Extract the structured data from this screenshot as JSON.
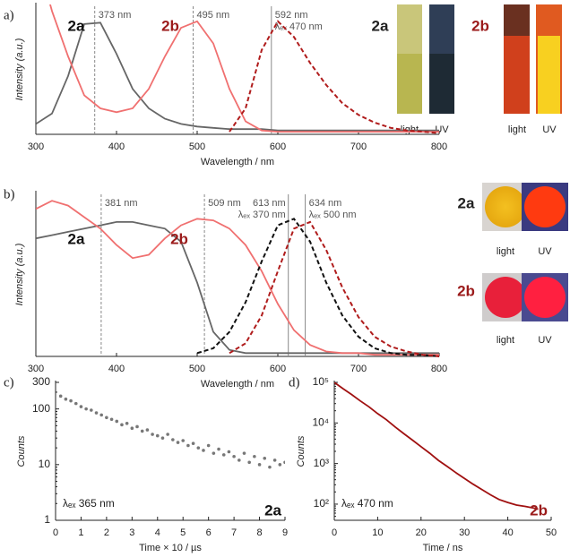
{
  "chart_data": [
    {
      "panel": "a)",
      "type": "line",
      "x_label": "Wavelength / nm",
      "y_label": "Intensity (a.u.)",
      "x": [
        300,
        320,
        340,
        360,
        380,
        400,
        420,
        440,
        460,
        480,
        500,
        520,
        540,
        560,
        580,
        600,
        620,
        640,
        660,
        680,
        700,
        720,
        740,
        760,
        780,
        800
      ],
      "xlim": [
        300,
        800
      ],
      "xticks": [
        300,
        400,
        500,
        600,
        700,
        800
      ],
      "ylim": [
        0,
        1
      ],
      "series": [
        {
          "name": "2a",
          "color": "#666666",
          "label_color": "#111111",
          "dashed": false,
          "values": [
            0.08,
            0.16,
            0.45,
            0.85,
            0.86,
            0.62,
            0.35,
            0.2,
            0.12,
            0.08,
            0.06,
            0.05,
            0.04,
            0.04,
            0.04,
            0.03,
            0.03,
            0.03,
            0.03,
            0.03,
            0.03,
            0.03,
            0.03,
            0.03,
            0.03,
            0.03
          ]
        },
        {
          "name": "2b",
          "color": "#f07070",
          "label_color": "#9b1b1b",
          "dashed": false,
          "values": [
            1.4,
            0.95,
            0.6,
            0.3,
            0.2,
            0.17,
            0.2,
            0.35,
            0.6,
            0.82,
            0.87,
            0.7,
            0.35,
            0.1,
            0.03,
            0.02,
            0.02,
            0.02,
            0.02,
            0.02,
            0.02,
            0.02,
            0.02,
            0.02,
            0.02,
            0.02
          ]
        },
        {
          "color": "#b01c1c",
          "dashed": true,
          "values": [
            null,
            null,
            null,
            null,
            null,
            null,
            null,
            null,
            null,
            null,
            null,
            null,
            0.02,
            0.2,
            0.65,
            0.87,
            0.75,
            0.55,
            0.38,
            0.24,
            0.15,
            0.09,
            0.05,
            0.03,
            0.02,
            0.01
          ]
        }
      ],
      "vlines": [
        {
          "x": 373,
          "label": "373 nm",
          "style": "dashed"
        },
        {
          "x": 495,
          "label": "495 nm",
          "style": "dashed"
        },
        {
          "x": 592,
          "label": "592 nm",
          "excitation": "λₑₓ 470 nm",
          "style": "solid"
        }
      ],
      "photos": [
        {
          "compound": "2a",
          "captions": [
            "light",
            "UV"
          ]
        },
        {
          "compound": "2b",
          "captions": [
            "light",
            "UV"
          ]
        }
      ]
    },
    {
      "panel": "b)",
      "type": "line",
      "x_label": "Wavelength / nm",
      "y_label": "Intensity (a.u.)",
      "x": [
        300,
        320,
        340,
        360,
        380,
        400,
        420,
        440,
        460,
        480,
        500,
        520,
        540,
        560,
        580,
        600,
        620,
        640,
        660,
        680,
        700,
        720,
        740,
        760,
        780,
        800
      ],
      "xlim": [
        300,
        800
      ],
      "xticks": [
        300,
        400,
        500,
        600,
        700,
        800
      ],
      "ylim": [
        0,
        1
      ],
      "series": [
        {
          "name": "2a",
          "color": "#666666",
          "label_color": "#111111",
          "dashed": false,
          "values": [
            0.72,
            0.74,
            0.76,
            0.78,
            0.8,
            0.82,
            0.82,
            0.8,
            0.78,
            0.7,
            0.45,
            0.15,
            0.04,
            0.02,
            0.02,
            0.02,
            0.02,
            0.02,
            0.02,
            0.02,
            0.02,
            0.02,
            0.02,
            0.02,
            0.02,
            0.02
          ]
        },
        {
          "name": "2b",
          "color": "#f07070",
          "label_color": "#9b1b1b",
          "dashed": false,
          "values": [
            0.9,
            0.95,
            0.92,
            0.85,
            0.78,
            0.68,
            0.6,
            0.62,
            0.72,
            0.8,
            0.84,
            0.83,
            0.78,
            0.68,
            0.52,
            0.32,
            0.16,
            0.07,
            0.03,
            0.02,
            0.02,
            0.01,
            0.01,
            0.01,
            0.01,
            0.01
          ]
        },
        {
          "color": "#111111",
          "dashed": true,
          "values": [
            null,
            null,
            null,
            null,
            null,
            null,
            null,
            null,
            null,
            null,
            0.02,
            0.05,
            0.15,
            0.33,
            0.58,
            0.8,
            0.84,
            0.7,
            0.45,
            0.25,
            0.12,
            0.05,
            0.02,
            0.01,
            0.01,
            0
          ]
        },
        {
          "color": "#b01c1c",
          "dashed": true,
          "values": [
            null,
            null,
            null,
            null,
            null,
            null,
            null,
            null,
            null,
            null,
            null,
            null,
            0.02,
            0.08,
            0.25,
            0.52,
            0.78,
            0.82,
            0.65,
            0.42,
            0.24,
            0.12,
            0.06,
            0.03,
            0.01,
            0
          ]
        }
      ],
      "vlines": [
        {
          "x": 381,
          "label": "381 nm",
          "style": "dashed"
        },
        {
          "x": 509,
          "label": "509 nm",
          "style": "dashed"
        },
        {
          "x": 613,
          "label": "613 nm",
          "excitation": "λₑₓ 370 nm",
          "style": "solid"
        },
        {
          "x": 634,
          "label": "634 nm",
          "excitation": "λₑₓ 500 nm",
          "style": "solid"
        }
      ],
      "photos": [
        {
          "compound": "2a",
          "captions": [
            "light",
            "UV"
          ]
        },
        {
          "compound": "2b",
          "captions": [
            "light",
            "UV"
          ]
        }
      ]
    },
    {
      "panel": "c)",
      "type": "scatter",
      "x_label": "Time × 10 / µs",
      "y_label": "Counts",
      "yscale": "log",
      "x": [
        0.2,
        0.4,
        0.6,
        0.8,
        1.0,
        1.2,
        1.4,
        1.6,
        1.8,
        2.0,
        2.2,
        2.4,
        2.6,
        2.8,
        3.0,
        3.2,
        3.4,
        3.6,
        3.8,
        4.0,
        4.2,
        4.4,
        4.6,
        4.8,
        5.0,
        5.2,
        5.4,
        5.6,
        5.8,
        6.0,
        6.2,
        6.4,
        6.6,
        6.8,
        7.0,
        7.2,
        7.4,
        7.6,
        7.8,
        8.0,
        8.2,
        8.4,
        8.6,
        8.8,
        9.0
      ],
      "xlim": [
        0,
        9
      ],
      "xticks": [
        0,
        1,
        2,
        3,
        4,
        5,
        6,
        7,
        8,
        9
      ],
      "ylim": [
        1,
        300
      ],
      "yticks": [
        1,
        10,
        100,
        300
      ],
      "series": [
        {
          "color": "#777777",
          "values": [
            170,
            150,
            140,
            125,
            110,
            100,
            95,
            85,
            78,
            70,
            65,
            60,
            52,
            55,
            45,
            48,
            40,
            42,
            35,
            33,
            30,
            35,
            28,
            25,
            27,
            22,
            24,
            20,
            18,
            22,
            16,
            19,
            15,
            17,
            14,
            12,
            16,
            11,
            14,
            10,
            13,
            9,
            12,
            10,
            11
          ]
        }
      ],
      "annotations": [
        {
          "text": "λₑₓ 365 nm",
          "color": "#222222"
        },
        {
          "text": "2a",
          "color": "#111111"
        }
      ]
    },
    {
      "panel": "d)",
      "type": "line",
      "x_label": "Time / ns",
      "y_label": "Counts",
      "yscale": "log",
      "x": [
        0,
        2,
        4,
        6,
        8,
        10,
        12,
        14,
        16,
        18,
        20,
        22,
        24,
        26,
        28,
        30,
        32,
        34,
        36,
        38,
        40,
        42,
        44,
        46,
        47
      ],
      "xlim": [
        0,
        50
      ],
      "xticks": [
        0,
        10,
        20,
        30,
        40,
        50
      ],
      "ylim": [
        40,
        100000
      ],
      "yticks": [
        {
          "value": 100,
          "label": "10²"
        },
        {
          "value": 1000,
          "label": "10³"
        },
        {
          "value": 10000,
          "label": "10⁴"
        },
        {
          "value": 100000,
          "label": "10⁵"
        }
      ],
      "series": [
        {
          "color": "#a01010",
          "dashed": false,
          "values": [
            100000,
            70000,
            50000,
            35000,
            25000,
            17000,
            12000,
            8000,
            5500,
            3800,
            2600,
            1800,
            1200,
            850,
            600,
            430,
            310,
            230,
            170,
            130,
            110,
            95,
            88,
            80,
            75
          ]
        }
      ],
      "annotations": [
        {
          "text": "λₑₓ 470 nm",
          "color": "#222222"
        },
        {
          "text": "2b",
          "color": "#9b1b1b"
        }
      ]
    }
  ]
}
